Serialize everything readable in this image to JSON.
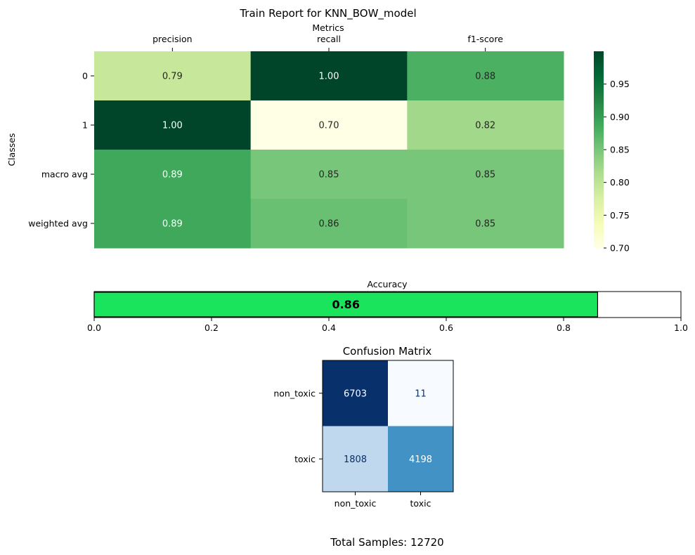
{
  "report_title": "Train Report for KNN_BOW_model",
  "footer": {
    "total_samples": "Total Samples: 12720"
  },
  "colors": {
    "accuracy_fill": "#1ae35c",
    "heatmap_cmap": "Greens (YlGn)",
    "confusion_cmap": "Blues"
  },
  "chart_data": [
    {
      "type": "heatmap",
      "title": "",
      "xlabel": "Metrics",
      "ylabel": "Classes",
      "x_categories": [
        "precision",
        "recall",
        "f1-score"
      ],
      "y_categories": [
        "0",
        "1",
        "macro avg",
        "weighted avg"
      ],
      "values": [
        [
          0.79,
          1.0,
          0.88
        ],
        [
          1.0,
          0.7,
          0.82
        ],
        [
          0.89,
          0.85,
          0.85
        ],
        [
          0.89,
          0.86,
          0.85
        ]
      ],
      "cell_labels": [
        [
          "0.79",
          "1.00",
          "0.88"
        ],
        [
          "1.00",
          "0.70",
          "0.82"
        ],
        [
          "0.89",
          "0.85",
          "0.85"
        ],
        [
          "0.89",
          "0.86",
          "0.85"
        ]
      ],
      "colorbar": {
        "range": [
          0.7,
          1.0
        ],
        "ticks": [
          "0.70",
          "0.75",
          "0.80",
          "0.85",
          "0.90",
          "0.95"
        ]
      },
      "x_axis_position": "top"
    },
    {
      "type": "bar",
      "orientation": "horizontal",
      "title": "Accuracy",
      "value": 0.858,
      "value_label": "0.86",
      "xlim": [
        0,
        1
      ],
      "x_ticks": [
        "0.0",
        "0.2",
        "0.4",
        "0.6",
        "0.8",
        "1.0"
      ]
    },
    {
      "type": "heatmap",
      "title": "Confusion Matrix",
      "x_categories": [
        "non_toxic",
        "toxic"
      ],
      "y_categories": [
        "non_toxic",
        "toxic"
      ],
      "values": [
        [
          6703,
          11
        ],
        [
          1808,
          4198
        ]
      ],
      "cell_labels": [
        [
          "6703",
          "11"
        ],
        [
          "1808",
          "4198"
        ]
      ]
    }
  ]
}
